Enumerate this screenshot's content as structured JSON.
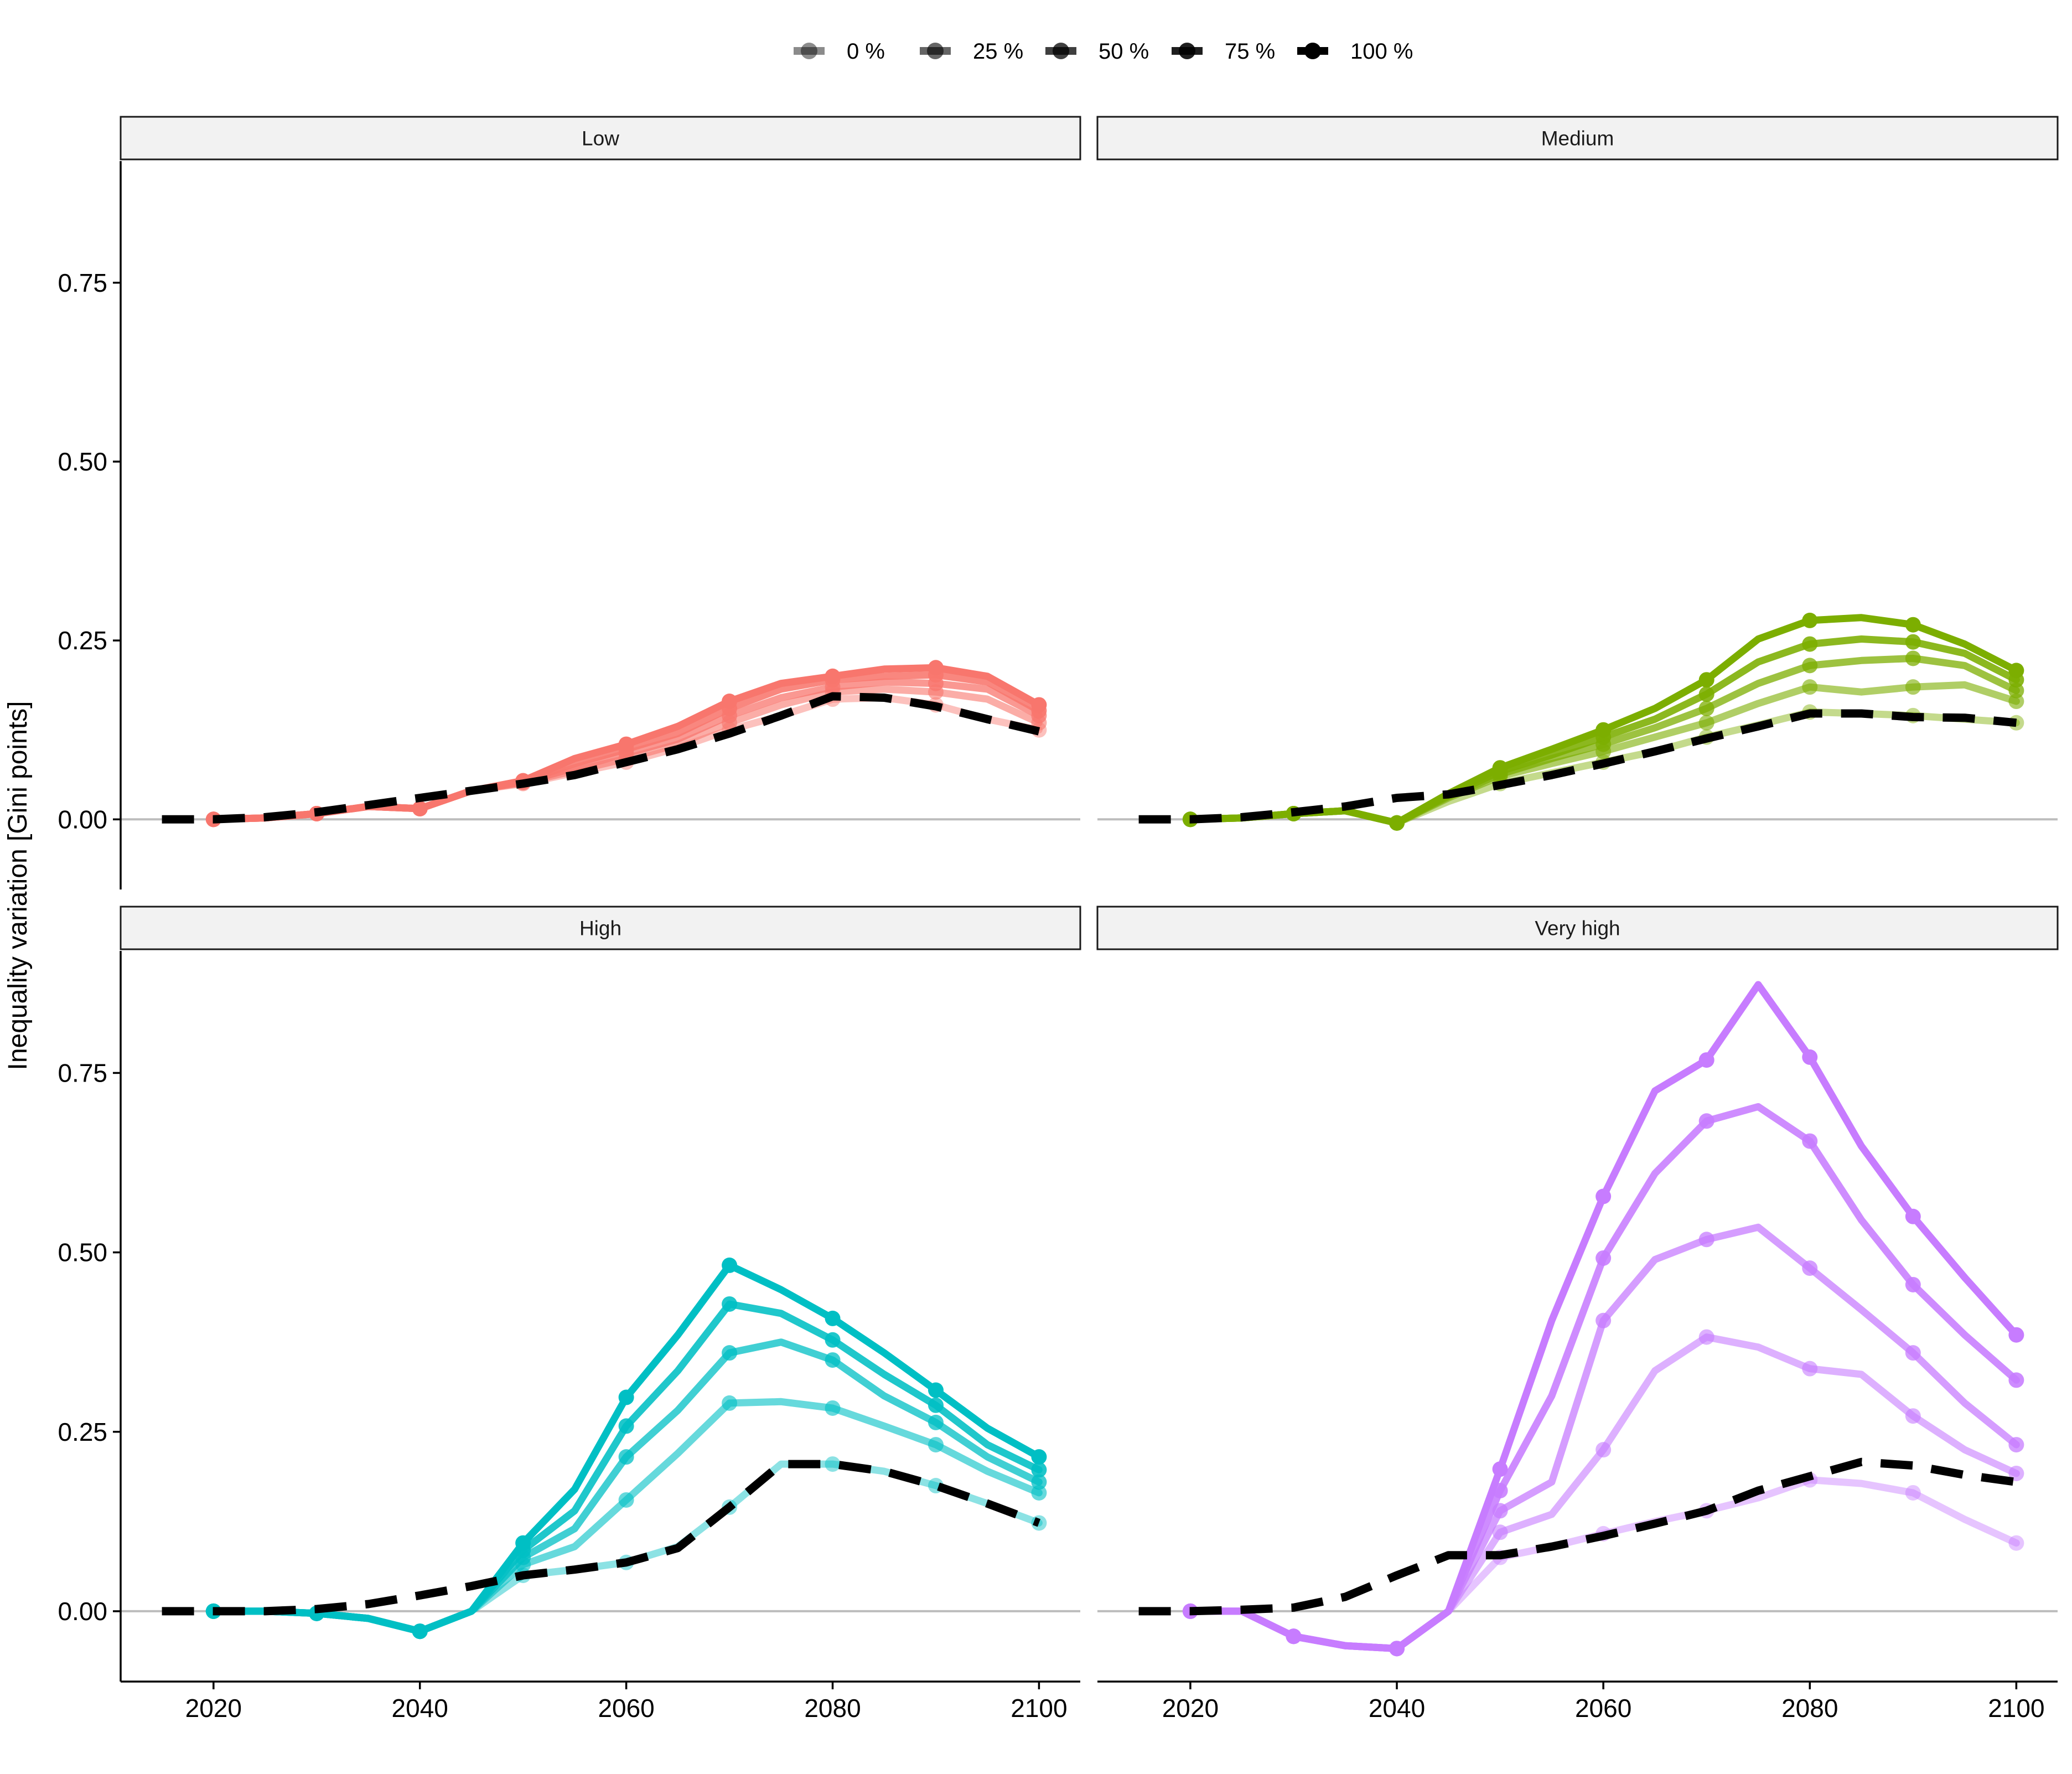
{
  "chart_data": {
    "type": "line",
    "ylabel": "Inequality variation [Gini points]",
    "xlabel": "",
    "xlim": [
      2011,
      2104
    ],
    "ylim": [
      -0.098,
      0.92
    ],
    "x_ticks": [
      2020,
      2040,
      2060,
      2080,
      2100
    ],
    "y_ticks": [
      0.0,
      0.25,
      0.5,
      0.75
    ],
    "y_tick_labels": [
      "0.00",
      "0.25",
      "0.50",
      "0.75"
    ],
    "reference_line_y": 0,
    "legend": {
      "position": "top",
      "entries": [
        {
          "label": "0 %",
          "opacity": 0.45
        },
        {
          "label": "25 %",
          "opacity": 0.6
        },
        {
          "label": "50 %",
          "opacity": 0.75
        },
        {
          "label": "75 %",
          "opacity": 0.88
        },
        {
          "label": "100 %",
          "opacity": 1.0
        }
      ]
    },
    "x": [
      2015,
      2020,
      2025,
      2030,
      2035,
      2040,
      2045,
      2050,
      2055,
      2060,
      2065,
      2070,
      2075,
      2080,
      2085,
      2090,
      2095,
      2100
    ],
    "marker_years": [
      2020,
      2030,
      2040,
      2050,
      2060,
      2070,
      2080,
      2090,
      2100
    ],
    "panels": [
      {
        "title": "Low",
        "color": "#F8766D",
        "series": [
          {
            "name": "0 %",
            "values": [
              null,
              0.0,
              0.002,
              0.008,
              0.018,
              0.015,
              0.04,
              0.05,
              0.065,
              0.08,
              0.1,
              0.125,
              0.145,
              0.168,
              0.17,
              0.16,
              0.14,
              0.125
            ]
          },
          {
            "name": "25 %",
            "values": [
              null,
              0.0,
              0.002,
              0.008,
              0.018,
              0.015,
              0.04,
              0.051,
              0.068,
              0.085,
              0.105,
              0.135,
              0.16,
              0.178,
              0.182,
              0.178,
              0.168,
              0.135
            ]
          },
          {
            "name": "50 %",
            "values": [
              null,
              0.0,
              0.002,
              0.008,
              0.018,
              0.015,
              0.04,
              0.052,
              0.072,
              0.092,
              0.112,
              0.145,
              0.17,
              0.185,
              0.192,
              0.19,
              0.182,
              0.145
            ]
          },
          {
            "name": "75 %",
            "values": [
              null,
              0.0,
              0.002,
              0.008,
              0.018,
              0.015,
              0.04,
              0.053,
              0.078,
              0.098,
              0.12,
              0.155,
              0.182,
              0.195,
              0.2,
              0.202,
              0.192,
              0.152
            ]
          },
          {
            "name": "100 %",
            "values": [
              null,
              0.0,
              0.002,
              0.008,
              0.018,
              0.015,
              0.04,
              0.054,
              0.085,
              0.105,
              0.13,
              0.165,
              0.19,
              0.2,
              0.21,
              0.212,
              0.2,
              0.16
            ]
          }
        ],
        "dashed": {
          "values": [
            0.0,
            0.0,
            0.003,
            0.01,
            0.02,
            0.03,
            0.04,
            0.05,
            0.062,
            0.08,
            0.098,
            0.12,
            0.145,
            0.172,
            0.17,
            0.158,
            0.14,
            0.123
          ]
        }
      },
      {
        "title": "Medium",
        "color": "#7CAE00",
        "series": [
          {
            "name": "0 %",
            "values": [
              null,
              0.0,
              0.002,
              0.008,
              0.012,
              -0.005,
              0.025,
              0.05,
              0.065,
              0.08,
              0.095,
              0.115,
              0.132,
              0.15,
              0.148,
              0.145,
              0.14,
              0.135
            ]
          },
          {
            "name": "25 %",
            "values": [
              null,
              0.0,
              0.002,
              0.008,
              0.012,
              -0.005,
              0.03,
              0.06,
              0.078,
              0.095,
              0.115,
              0.135,
              0.162,
              0.185,
              0.178,
              0.185,
              0.188,
              0.165
            ]
          },
          {
            "name": "50 %",
            "values": [
              null,
              0.0,
              0.002,
              0.008,
              0.012,
              -0.005,
              0.032,
              0.063,
              0.085,
              0.105,
              0.128,
              0.155,
              0.19,
              0.215,
              0.222,
              0.225,
              0.215,
              0.18
            ]
          },
          {
            "name": "75 %",
            "values": [
              null,
              0.0,
              0.002,
              0.008,
              0.012,
              -0.005,
              0.034,
              0.067,
              0.09,
              0.115,
              0.14,
              0.175,
              0.22,
              0.245,
              0.252,
              0.248,
              0.232,
              0.195
            ]
          },
          {
            "name": "100 %",
            "values": [
              null,
              0.0,
              0.002,
              0.008,
              0.012,
              -0.005,
              0.036,
              0.072,
              0.098,
              0.125,
              0.155,
              0.195,
              0.252,
              0.278,
              0.282,
              0.272,
              0.245,
              0.208
            ]
          }
        ],
        "dashed": {
          "values": [
            0.0,
            0.0,
            0.003,
            0.01,
            0.018,
            0.03,
            0.035,
            0.048,
            0.062,
            0.078,
            0.095,
            0.113,
            0.13,
            0.148,
            0.148,
            0.143,
            0.142,
            0.135
          ]
        }
      },
      {
        "title": "High",
        "color": "#00BFC4",
        "series": [
          {
            "name": "0 %",
            "values": [
              null,
              0.0,
              0.0,
              -0.003,
              -0.01,
              -0.028,
              0.0,
              0.05,
              0.058,
              0.068,
              0.09,
              0.145,
              0.205,
              0.205,
              0.195,
              0.175,
              0.15,
              0.123
            ]
          },
          {
            "name": "25 %",
            "values": [
              null,
              0.0,
              0.0,
              -0.003,
              -0.01,
              -0.028,
              0.0,
              0.065,
              0.09,
              0.155,
              0.22,
              0.29,
              0.292,
              0.283,
              0.258,
              0.232,
              0.195,
              0.165
            ]
          },
          {
            "name": "50 %",
            "values": [
              null,
              0.0,
              0.0,
              -0.003,
              -0.01,
              -0.028,
              0.0,
              0.075,
              0.115,
              0.215,
              0.28,
              0.36,
              0.375,
              0.35,
              0.3,
              0.263,
              0.215,
              0.18
            ]
          },
          {
            "name": "75 %",
            "values": [
              null,
              0.0,
              0.0,
              -0.003,
              -0.01,
              -0.028,
              0.0,
              0.085,
              0.14,
              0.258,
              0.335,
              0.428,
              0.415,
              0.378,
              0.33,
              0.287,
              0.232,
              0.197
            ]
          },
          {
            "name": "100 %",
            "values": [
              null,
              0.0,
              0.0,
              -0.003,
              -0.01,
              -0.028,
              0.0,
              0.095,
              0.17,
              0.298,
              0.385,
              0.482,
              0.448,
              0.408,
              0.36,
              0.308,
              0.255,
              0.215
            ]
          }
        ],
        "dashed": {
          "values": [
            0.0,
            0.0,
            0.0,
            0.003,
            0.01,
            0.022,
            0.035,
            0.05,
            0.058,
            0.068,
            0.088,
            0.145,
            0.205,
            0.205,
            0.195,
            0.175,
            0.15,
            0.123
          ]
        }
      },
      {
        "title": "Very high",
        "color": "#C77CFF",
        "series": [
          {
            "name": "0 %",
            "values": [
              null,
              0.0,
              0.0,
              -0.035,
              -0.048,
              -0.052,
              0.0,
              0.075,
              0.09,
              0.108,
              0.125,
              0.14,
              0.158,
              0.183,
              0.178,
              0.165,
              0.128,
              0.095
            ]
          },
          {
            "name": "25 %",
            "values": [
              null,
              0.0,
              0.0,
              -0.035,
              -0.048,
              -0.052,
              0.0,
              0.11,
              0.135,
              0.225,
              0.335,
              0.382,
              0.368,
              0.338,
              0.33,
              0.272,
              0.225,
              0.192
            ]
          },
          {
            "name": "50 %",
            "values": [
              null,
              0.0,
              0.0,
              -0.035,
              -0.048,
              -0.052,
              0.0,
              0.14,
              0.18,
              0.405,
              0.49,
              0.518,
              0.535,
              0.478,
              0.42,
              0.36,
              0.29,
              0.232
            ]
          },
          {
            "name": "75 %",
            "values": [
              null,
              0.0,
              0.0,
              -0.035,
              -0.048,
              -0.052,
              0.0,
              0.168,
              0.3,
              0.492,
              0.61,
              0.683,
              0.703,
              0.655,
              0.545,
              0.455,
              0.385,
              0.322
            ]
          },
          {
            "name": "100 %",
            "values": [
              null,
              0.0,
              0.0,
              -0.035,
              -0.048,
              -0.052,
              0.0,
              0.198,
              0.405,
              0.578,
              0.725,
              0.768,
              0.873,
              0.772,
              0.648,
              0.55,
              0.465,
              0.385
            ]
          }
        ],
        "dashed": {
          "values": [
            0.0,
            0.0,
            0.002,
            0.005,
            0.02,
            0.05,
            0.078,
            0.078,
            0.09,
            0.105,
            0.122,
            0.14,
            0.168,
            0.188,
            0.208,
            0.203,
            0.19,
            0.18
          ]
        }
      }
    ]
  }
}
